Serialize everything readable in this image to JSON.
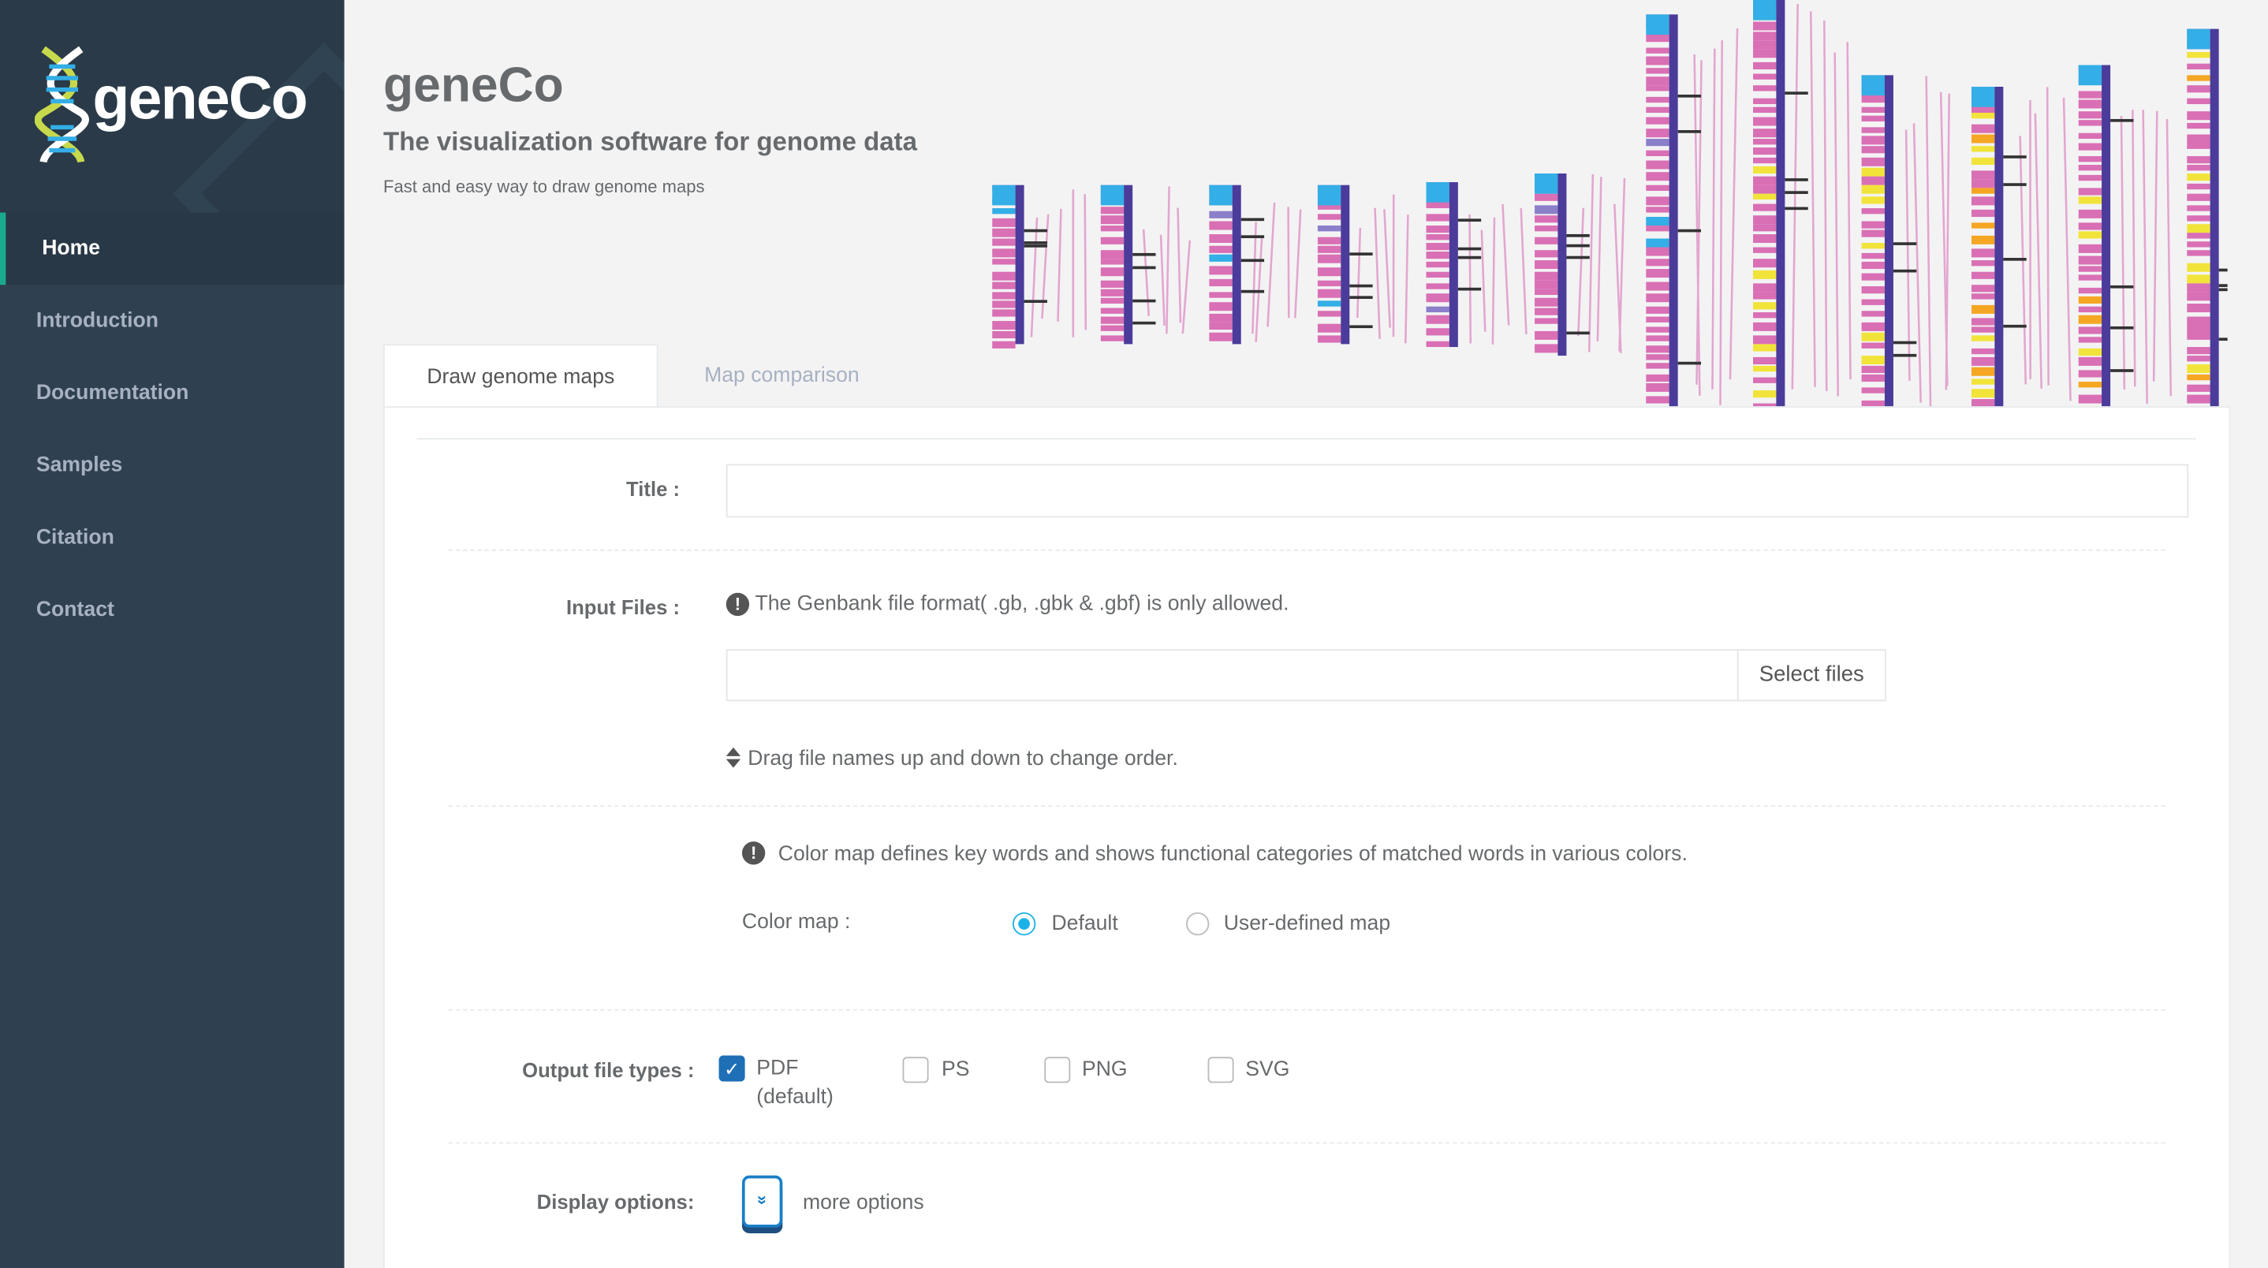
{
  "app": {
    "logo": "geneCo",
    "title": "geneCo",
    "subtitle": "The visualization software for genome data",
    "tagline": "Fast and easy way to draw genome maps"
  },
  "sidebar": {
    "items": [
      {
        "label": "Home"
      },
      {
        "label": "Introduction"
      },
      {
        "label": "Documentation"
      },
      {
        "label": "Samples"
      },
      {
        "label": "Citation"
      },
      {
        "label": "Contact"
      }
    ]
  },
  "tabs": [
    {
      "label": "Draw genome maps"
    },
    {
      "label": "Map comparison"
    }
  ],
  "form": {
    "title_label": "Title :",
    "title_value": "",
    "input_files_label": "Input Files :",
    "input_files_note": "The Genbank file format( .gb, .gbk & .gbf) is only allowed.",
    "files_value": "",
    "select_files": "Select files",
    "drag_note": "Drag file names up and down to change order.",
    "color_map_note": "Color map defines key words and shows functional categories of matched words in various colors.",
    "color_map_label": "Color map :",
    "color_map_options": [
      "Default",
      "User-defined map"
    ],
    "output_label": "Output file types :",
    "output_options": [
      "PDF",
      "PS",
      "PNG",
      "SVG"
    ],
    "pdf_default": "(default)",
    "display_label": "Display options:",
    "more_options": "more options"
  },
  "colors": {
    "sidebar": "#2f4050",
    "accent": "#19aa8d",
    "radio": "#1ab2e6",
    "check": "#1f6fb6",
    "gene_pink": "#d96fb4",
    "gene_blue": "#33aee6",
    "gene_purple": "#4b3b9a",
    "gene_yellow": "#f2e33a",
    "gene_orange": "#f5a623"
  }
}
